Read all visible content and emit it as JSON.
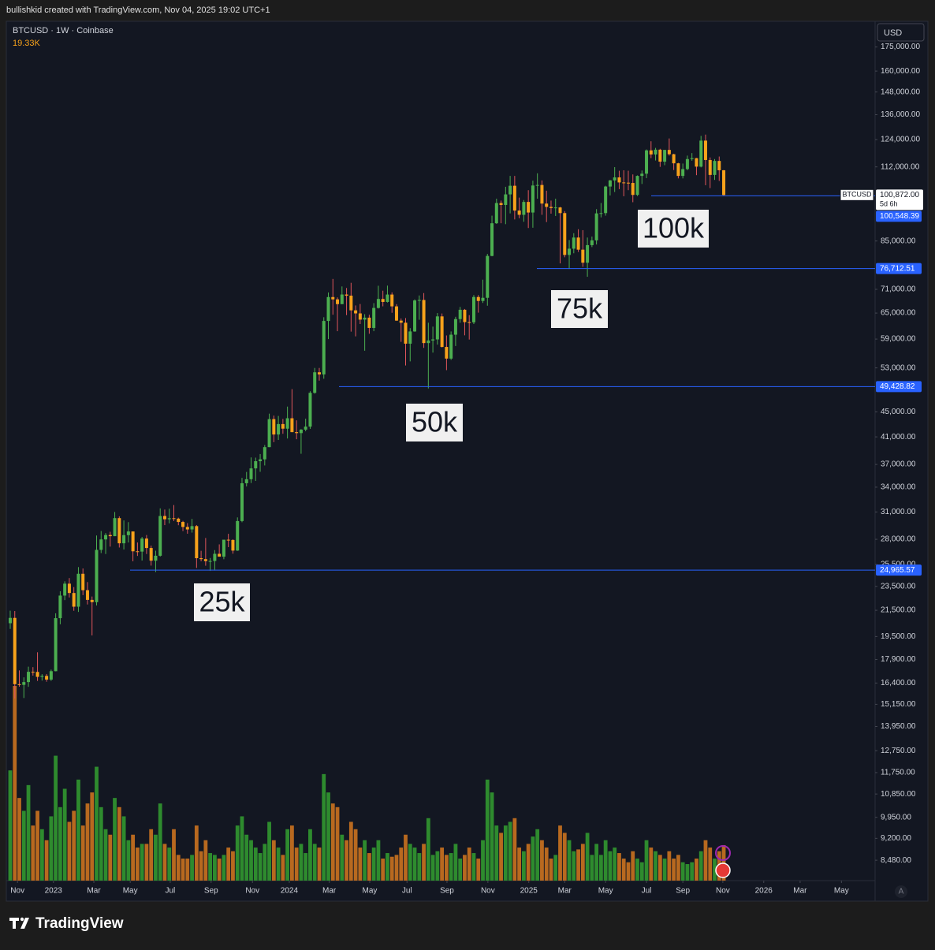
{
  "header": {
    "text": "bullishkid created with TradingView.com, Nov 04, 2025 19:02 UTC+1"
  },
  "footer": {
    "brand": "TradingView"
  },
  "chart_data": {
    "type": "candlestick",
    "symbol": "BTCUSD · 1W · Coinbase",
    "volume_label": "19.33K",
    "currency": "USD",
    "scale_mode": "A",
    "log_scale": true,
    "colors": {
      "up": "#4caf50",
      "down": "#f7a21b",
      "volume_up": "#2e8b2e",
      "volume_down": "#b8691f",
      "price_line": "#2962ff"
    },
    "ylim": [
      7860,
      192000
    ],
    "yticks": [
      {
        "value": 175000,
        "label": "175,000.00"
      },
      {
        "value": 160000,
        "label": "160,000.00"
      },
      {
        "value": 148000,
        "label": "148,000.00"
      },
      {
        "value": 136000,
        "label": "136,000.00"
      },
      {
        "value": 124000,
        "label": "124,000.00"
      },
      {
        "value": 112000,
        "label": "112,000.00"
      },
      {
        "value": 85000,
        "label": "85,000.00"
      },
      {
        "value": 71000,
        "label": "71,000.00"
      },
      {
        "value": 65000,
        "label": "65,000.00"
      },
      {
        "value": 59000,
        "label": "59,000.00"
      },
      {
        "value": 53000,
        "label": "53,000.00"
      },
      {
        "value": 45000,
        "label": "45,000.00"
      },
      {
        "value": 41000,
        "label": "41,000.00"
      },
      {
        "value": 37000,
        "label": "37,000.00"
      },
      {
        "value": 34000,
        "label": "34,000.00"
      },
      {
        "value": 31000,
        "label": "31,000.00"
      },
      {
        "value": 28000,
        "label": "28,000.00"
      },
      {
        "value": 25500,
        "label": "25,500.00"
      },
      {
        "value": 23500,
        "label": "23,500.00"
      },
      {
        "value": 21500,
        "label": "21,500.00"
      },
      {
        "value": 19500,
        "label": "19,500.00"
      },
      {
        "value": 17900,
        "label": "17,900.00"
      },
      {
        "value": 16400,
        "label": "16,400.00"
      },
      {
        "value": 15150,
        "label": "15,150.00"
      },
      {
        "value": 13950,
        "label": "13,950.00"
      },
      {
        "value": 12750,
        "label": "12,750.00"
      },
      {
        "value": 11750,
        "label": "11,750.00"
      },
      {
        "value": 10850,
        "label": "10,850.00"
      },
      {
        "value": 9950,
        "label": "9,950.00"
      },
      {
        "value": 9200,
        "label": "9,200.00"
      },
      {
        "value": 8480,
        "label": "8,480.00"
      }
    ],
    "xlim": [
      -0.69,
      190.3
    ],
    "xticks": [
      {
        "value": 1.6,
        "label": "Nov"
      },
      {
        "value": 9.5,
        "label": "2023"
      },
      {
        "value": 18.4,
        "label": "Mar"
      },
      {
        "value": 26.4,
        "label": "May"
      },
      {
        "value": 35.2,
        "label": "Jul"
      },
      {
        "value": 44.2,
        "label": "Sep"
      },
      {
        "value": 53.3,
        "label": "Nov"
      },
      {
        "value": 61.4,
        "label": "2024"
      },
      {
        "value": 70.2,
        "label": "Mar"
      },
      {
        "value": 79.1,
        "label": "May"
      },
      {
        "value": 87.3,
        "label": "Jul"
      },
      {
        "value": 96.1,
        "label": "Sep"
      },
      {
        "value": 105.1,
        "label": "Nov"
      },
      {
        "value": 114.1,
        "label": "2025"
      },
      {
        "value": 122,
        "label": "Mar"
      },
      {
        "value": 131,
        "label": "May"
      },
      {
        "value": 140,
        "label": "Jul"
      },
      {
        "value": 148,
        "label": "Sep"
      },
      {
        "value": 156.8,
        "label": "Nov"
      },
      {
        "value": 165.8,
        "label": "2026"
      },
      {
        "value": 173.8,
        "label": "Mar"
      },
      {
        "value": 182.9,
        "label": "May"
      }
    ],
    "candles": [
      [
        20490,
        21470,
        20060,
        20900
      ],
      [
        20900,
        21440,
        15480,
        16330
      ],
      [
        16330,
        17190,
        16180,
        16290
      ],
      [
        16290,
        16750,
        15510,
        16460
      ],
      [
        16460,
        17430,
        16170,
        17100
      ],
      [
        17100,
        17400,
        16860,
        17090
      ],
      [
        17090,
        18390,
        16530,
        16780
      ],
      [
        16780,
        16950,
        16550,
        16840
      ],
      [
        16840,
        16960,
        16480,
        16610
      ],
      [
        16610,
        17240,
        16530,
        17140
      ],
      [
        17140,
        21260,
        17130,
        20880
      ],
      [
        20880,
        23080,
        20410,
        22710
      ],
      [
        22710,
        23950,
        22330,
        23740
      ],
      [
        23740,
        24240,
        22550,
        22930
      ],
      [
        22930,
        23440,
        21460,
        21790
      ],
      [
        21790,
        25250,
        21370,
        24630
      ],
      [
        24630,
        25120,
        22750,
        23170
      ],
      [
        23170,
        23880,
        21970,
        22350
      ],
      [
        22350,
        22630,
        19580,
        22160
      ],
      [
        22160,
        28400,
        21890,
        26920
      ],
      [
        26920,
        28880,
        26600,
        27990
      ],
      [
        27990,
        28660,
        26510,
        28450
      ],
      [
        28450,
        28800,
        27250,
        28330
      ],
      [
        28330,
        31000,
        28330,
        30300
      ],
      [
        30300,
        30500,
        27160,
        27590
      ],
      [
        27590,
        30040,
        26960,
        28440
      ],
      [
        28440,
        29850,
        27670,
        28830
      ],
      [
        28830,
        28830,
        25800,
        26780
      ],
      [
        26780,
        27670,
        26320,
        26750
      ],
      [
        26750,
        28250,
        25870,
        28080
      ],
      [
        28080,
        28450,
        26510,
        27110
      ],
      [
        27110,
        27350,
        25390,
        25860
      ],
      [
        25860,
        26840,
        24790,
        26340
      ],
      [
        26340,
        31420,
        26260,
        30540
      ],
      [
        30540,
        31280,
        29520,
        30170
      ],
      [
        30170,
        31380,
        29710,
        30290
      ],
      [
        30290,
        31810,
        29970,
        30240
      ],
      [
        30240,
        30350,
        29510,
        29870
      ],
      [
        29870,
        29990,
        28870,
        29320
      ],
      [
        29320,
        29740,
        28590,
        29050
      ],
      [
        29050,
        30210,
        28710,
        29410
      ],
      [
        29410,
        29530,
        25170,
        26100
      ],
      [
        26100,
        26830,
        25800,
        26010
      ],
      [
        26010,
        28140,
        25380,
        25820
      ],
      [
        25820,
        26120,
        24900,
        25830
      ],
      [
        25830,
        26900,
        24930,
        26530
      ],
      [
        26530,
        27480,
        26370,
        26250
      ],
      [
        26250,
        27300,
        26000,
        27960
      ],
      [
        27960,
        28580,
        27200,
        27930
      ],
      [
        27930,
        28010,
        26540,
        26850
      ],
      [
        26850,
        30380,
        26820,
        29970
      ],
      [
        29970,
        35200,
        29840,
        34500
      ],
      [
        34500,
        35980,
        34090,
        35020
      ],
      [
        35020,
        37980,
        34530,
        36460
      ],
      [
        36460,
        37950,
        34800,
        37450
      ],
      [
        37450,
        38460,
        36000,
        37710
      ],
      [
        37710,
        39770,
        36860,
        39460
      ],
      [
        39460,
        44700,
        39460,
        43800
      ],
      [
        43800,
        44380,
        40200,
        41360
      ],
      [
        41360,
        44320,
        40530,
        43000
      ],
      [
        43000,
        43830,
        41470,
        42270
      ],
      [
        42270,
        45890,
        40750,
        43940
      ],
      [
        43940,
        48970,
        41720,
        41730
      ],
      [
        41730,
        43600,
        40640,
        41580
      ],
      [
        41580,
        42200,
        38500,
        42120
      ],
      [
        42120,
        43870,
        41860,
        42590
      ],
      [
        42590,
        48590,
        42240,
        48300
      ],
      [
        48300,
        52990,
        48150,
        52140
      ],
      [
        52140,
        52990,
        50550,
        51730
      ],
      [
        51730,
        64000,
        50900,
        63120
      ],
      [
        63120,
        70170,
        59000,
        68990
      ],
      [
        68990,
        73800,
        64600,
        68400
      ],
      [
        68400,
        68900,
        60760,
        67200
      ],
      [
        67200,
        71770,
        67200,
        69650
      ],
      [
        69650,
        71360,
        64500,
        69350
      ],
      [
        69350,
        72750,
        60660,
        65660
      ],
      [
        65660,
        66870,
        59600,
        64920
      ],
      [
        64920,
        67230,
        62400,
        63430
      ],
      [
        63430,
        64730,
        56500,
        63900
      ],
      [
        63900,
        64600,
        60180,
        61500
      ],
      [
        61500,
        67450,
        60760,
        66250
      ],
      [
        66250,
        71950,
        66100,
        68500
      ],
      [
        68500,
        70650,
        66650,
        67750
      ],
      [
        67750,
        71990,
        67600,
        69640
      ],
      [
        69640,
        70200,
        65070,
        66640
      ],
      [
        66640,
        67200,
        63150,
        63200
      ],
      [
        63200,
        63700,
        58400,
        62700
      ],
      [
        62700,
        63800,
        53480,
        58000
      ],
      [
        58000,
        61450,
        54300,
        60700
      ],
      [
        60700,
        68400,
        60630,
        68120
      ],
      [
        68120,
        69400,
        63400,
        68240
      ],
      [
        68240,
        70020,
        57100,
        58130
      ],
      [
        58130,
        62700,
        49100,
        58700
      ],
      [
        58700,
        61800,
        56100,
        58930
      ],
      [
        58930,
        65000,
        57800,
        64200
      ],
      [
        64200,
        64900,
        57200,
        57300
      ],
      [
        57300,
        59800,
        52560,
        54870
      ],
      [
        54870,
        60700,
        54600,
        59970
      ],
      [
        59970,
        64100,
        57500,
        63560
      ],
      [
        63560,
        66500,
        62700,
        65800
      ],
      [
        65800,
        66000,
        59830,
        62850
      ],
      [
        62850,
        64500,
        58900,
        62800
      ],
      [
        62800,
        69500,
        62400,
        69000
      ],
      [
        69000,
        69500,
        65100,
        68000
      ],
      [
        68000,
        73600,
        67500,
        68800
      ],
      [
        68800,
        81000,
        66800,
        80400
      ],
      [
        80400,
        93400,
        80300,
        90800
      ],
      [
        90800,
        99500,
        90600,
        97900
      ],
      [
        97900,
        98800,
        90800,
        97200
      ],
      [
        97200,
        104000,
        90500,
        101100
      ],
      [
        101100,
        108300,
        94200,
        104400
      ],
      [
        104400,
        108300,
        92100,
        95200
      ],
      [
        95200,
        99900,
        92500,
        93700
      ],
      [
        93700,
        99000,
        91300,
        98300
      ],
      [
        98300,
        102700,
        89200,
        94500
      ],
      [
        94500,
        106400,
        89300,
        104500
      ],
      [
        104500,
        109350,
        99500,
        104700
      ],
      [
        104700,
        106500,
        93700,
        97700
      ],
      [
        97700,
        102500,
        91200,
        96500
      ],
      [
        96500,
        98800,
        94100,
        96100
      ],
      [
        96100,
        99500,
        93300,
        96300
      ],
      [
        96300,
        96500,
        78200,
        94300
      ],
      [
        94300,
        95000,
        80000,
        80700
      ],
      [
        80700,
        85300,
        76600,
        82600
      ],
      [
        82600,
        87500,
        81200,
        86100
      ],
      [
        86100,
        88800,
        81600,
        82300
      ],
      [
        82300,
        88500,
        77200,
        78400
      ],
      [
        78400,
        86100,
        74400,
        83700
      ],
      [
        83700,
        86400,
        83100,
        85200
      ],
      [
        85200,
        95700,
        83900,
        94200
      ],
      [
        94200,
        97900,
        92800,
        94300
      ],
      [
        94300,
        104400,
        93400,
        104100
      ],
      [
        104100,
        106700,
        100700,
        106500
      ],
      [
        106500,
        111900,
        102000,
        107700
      ],
      [
        107700,
        110400,
        103100,
        105700
      ],
      [
        105700,
        110600,
        100400,
        105600
      ],
      [
        105600,
        110400,
        102700,
        105500
      ],
      [
        105500,
        108900,
        98200,
        100900
      ],
      [
        100900,
        108500,
        100500,
        108300
      ],
      [
        108300,
        110500,
        105100,
        109200
      ],
      [
        109200,
        119500,
        107400,
        119100
      ],
      [
        119100,
        123200,
        115700,
        117300
      ],
      [
        117300,
        120200,
        114700,
        119400
      ],
      [
        119400,
        119800,
        112000,
        114200
      ],
      [
        114200,
        119300,
        112700,
        119300
      ],
      [
        119300,
        124500,
        116800,
        117400
      ],
      [
        117400,
        117600,
        110700,
        113500
      ],
      [
        113500,
        113700,
        107300,
        108300
      ],
      [
        108300,
        113400,
        107300,
        111100
      ],
      [
        111100,
        116800,
        110600,
        115300
      ],
      [
        115300,
        117900,
        114600,
        115700
      ],
      [
        115700,
        115800,
        108600,
        112100
      ],
      [
        112100,
        125700,
        111800,
        123500
      ],
      [
        123500,
        126300,
        104600,
        114900
      ],
      [
        114900,
        116000,
        103500,
        108700
      ],
      [
        108700,
        115300,
        106700,
        114500
      ],
      [
        114500,
        116400,
        106300,
        110600
      ],
      [
        110600,
        110700,
        100500,
        100872
      ]
    ],
    "volume": [
      60,
      106,
      45,
      38,
      52,
      30,
      38,
      28,
      22,
      35,
      68,
      40,
      50,
      32,
      38,
      55,
      30,
      42,
      48,
      62,
      40,
      28,
      25,
      45,
      40,
      35,
      22,
      25,
      18,
      20,
      20,
      28,
      25,
      42,
      20,
      18,
      28,
      14,
      12,
      12,
      14,
      30,
      16,
      22,
      15,
      14,
      12,
      14,
      18,
      16,
      30,
      35,
      25,
      22,
      18,
      15,
      20,
      32,
      22,
      18,
      14,
      28,
      30,
      18,
      20,
      15,
      28,
      20,
      18,
      58,
      48,
      42,
      40,
      25,
      22,
      32,
      28,
      18,
      22,
      15,
      18,
      22,
      12,
      15,
      13,
      14,
      18,
      25,
      20,
      18,
      15,
      20,
      34,
      14,
      16,
      18,
      14,
      15,
      20,
      12,
      14,
      18,
      15,
      12,
      22,
      55,
      48,
      30,
      26,
      30,
      32,
      34,
      18,
      16,
      20,
      24,
      28,
      22,
      18,
      12,
      14,
      30,
      26,
      22,
      16,
      17,
      20,
      26,
      14,
      20,
      14,
      22,
      16,
      18,
      15,
      12,
      10,
      16,
      12,
      10,
      22,
      18,
      16,
      14,
      12,
      16,
      12,
      14,
      10,
      9,
      10,
      12,
      16,
      22,
      18,
      12,
      16,
      19.33
    ],
    "last_price": {
      "symbol": "BTCUSD",
      "value": 100872,
      "label": "100,872.00",
      "countdown": "5d 6h"
    },
    "price_lines": [
      {
        "value": 100548.39,
        "label": "100,548.39"
      },
      {
        "value": 76712.51,
        "label": "76,712.51"
      },
      {
        "value": 49428.82,
        "label": "49,428.82"
      },
      {
        "value": 24965.57,
        "label": "24,965.57"
      }
    ],
    "annotations": [
      "100k",
      "75k",
      "50k",
      "25k"
    ]
  }
}
